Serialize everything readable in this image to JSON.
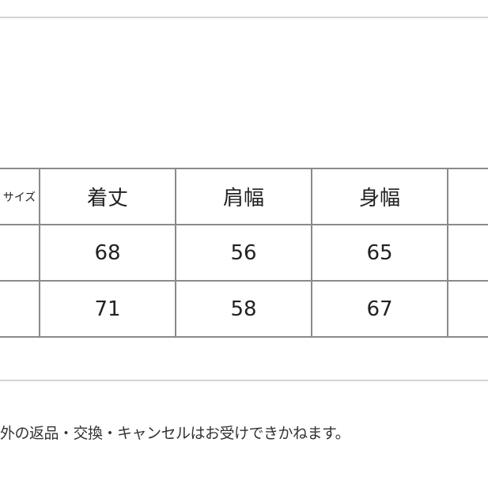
{
  "size_table": {
    "headers": [
      "サイズ",
      "着丈",
      "肩幅",
      "身幅",
      ""
    ],
    "rows": [
      [
        "",
        "68",
        "56",
        "65",
        ""
      ],
      [
        "",
        "71",
        "58",
        "67",
        ""
      ]
    ]
  },
  "notice": "外の返品・交換・キャンセルはお受けできかねます。"
}
